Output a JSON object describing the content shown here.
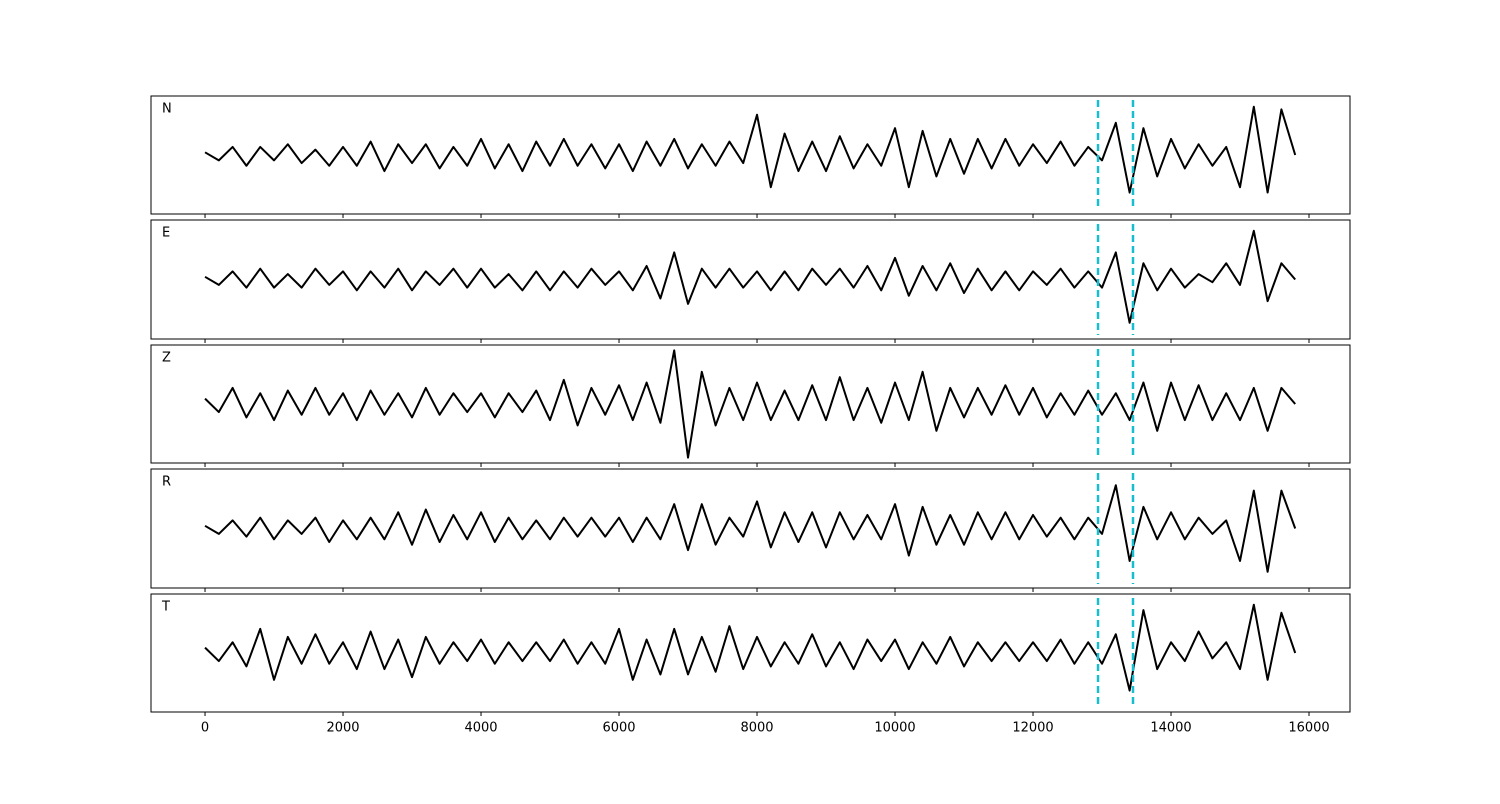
{
  "chart_data": {
    "type": "line",
    "x": [
      0,
      200,
      400,
      600,
      800,
      1000,
      1200,
      1400,
      1600,
      1800,
      2000,
      2200,
      2400,
      2600,
      2800,
      3000,
      3200,
      3400,
      3600,
      3800,
      4000,
      4200,
      4400,
      4600,
      4800,
      5000,
      5200,
      5400,
      5600,
      5800,
      6000,
      6200,
      6400,
      6600,
      6800,
      7000,
      7200,
      7400,
      7600,
      7800,
      8000,
      8200,
      8400,
      8600,
      8800,
      9000,
      9200,
      9400,
      9600,
      9800,
      10000,
      10200,
      10400,
      10600,
      10800,
      11000,
      11200,
      11400,
      11600,
      11800,
      12000,
      12200,
      12400,
      12600,
      12800,
      13000,
      13200,
      13400,
      13600,
      13800,
      14000,
      14200,
      14400,
      14600,
      14800,
      15000,
      15200,
      15400,
      15600,
      15800
    ],
    "series": [
      {
        "name": "N",
        "color": "#000000",
        "values": [
          0.05,
          -0.1,
          0.15,
          -0.2,
          0.15,
          -0.1,
          0.2,
          -0.15,
          0.1,
          -0.2,
          0.15,
          -0.2,
          0.25,
          -0.3,
          0.2,
          -0.15,
          0.2,
          -0.25,
          0.15,
          -0.2,
          0.3,
          -0.25,
          0.2,
          -0.3,
          0.25,
          -0.2,
          0.3,
          -0.2,
          0.2,
          -0.25,
          0.2,
          -0.3,
          0.25,
          -0.2,
          0.3,
          -0.25,
          0.2,
          -0.2,
          0.25,
          -0.15,
          0.75,
          -0.6,
          0.4,
          -0.3,
          0.25,
          -0.3,
          0.35,
          -0.25,
          0.2,
          -0.2,
          0.5,
          -0.6,
          0.45,
          -0.4,
          0.3,
          -0.35,
          0.3,
          -0.25,
          0.3,
          -0.2,
          0.2,
          -0.15,
          0.25,
          -0.2,
          0.15,
          -0.1,
          0.6,
          -0.7,
          0.5,
          -0.4,
          0.3,
          -0.25,
          0.2,
          -0.2,
          0.15,
          -0.6,
          0.9,
          -0.7,
          0.85,
          0.0
        ]
      },
      {
        "name": "E",
        "color": "#000000",
        "values": [
          0.05,
          -0.1,
          0.15,
          -0.15,
          0.2,
          -0.15,
          0.1,
          -0.15,
          0.2,
          -0.1,
          0.15,
          -0.2,
          0.15,
          -0.15,
          0.2,
          -0.2,
          0.15,
          -0.1,
          0.2,
          -0.15,
          0.2,
          -0.15,
          0.1,
          -0.2,
          0.15,
          -0.2,
          0.15,
          -0.15,
          0.2,
          -0.1,
          0.15,
          -0.2,
          0.25,
          -0.35,
          0.5,
          -0.45,
          0.2,
          -0.15,
          0.2,
          -0.15,
          0.15,
          -0.2,
          0.15,
          -0.2,
          0.2,
          -0.1,
          0.2,
          -0.15,
          0.25,
          -0.2,
          0.4,
          -0.3,
          0.25,
          -0.2,
          0.3,
          -0.25,
          0.2,
          -0.2,
          0.15,
          -0.2,
          0.15,
          -0.1,
          0.2,
          -0.15,
          0.15,
          -0.15,
          0.5,
          -0.8,
          0.3,
          -0.2,
          0.2,
          -0.15,
          0.1,
          -0.05,
          0.3,
          -0.1,
          0.9,
          -0.4,
          0.3,
          0.0
        ]
      },
      {
        "name": "Z",
        "color": "#000000",
        "values": [
          0.1,
          -0.15,
          0.3,
          -0.25,
          0.2,
          -0.3,
          0.25,
          -0.2,
          0.3,
          -0.2,
          0.2,
          -0.3,
          0.25,
          -0.2,
          0.2,
          -0.25,
          0.3,
          -0.2,
          0.2,
          -0.15,
          0.2,
          -0.25,
          0.2,
          -0.15,
          0.25,
          -0.3,
          0.45,
          -0.4,
          0.3,
          -0.2,
          0.35,
          -0.3,
          0.4,
          -0.35,
          1.0,
          -1.0,
          0.6,
          -0.4,
          0.3,
          -0.3,
          0.4,
          -0.3,
          0.25,
          -0.3,
          0.35,
          -0.3,
          0.5,
          -0.3,
          0.3,
          -0.35,
          0.4,
          -0.3,
          0.6,
          -0.5,
          0.3,
          -0.25,
          0.3,
          -0.2,
          0.35,
          -0.2,
          0.3,
          -0.25,
          0.2,
          -0.2,
          0.25,
          -0.2,
          0.2,
          -0.3,
          0.4,
          -0.5,
          0.4,
          -0.3,
          0.35,
          -0.3,
          0.2,
          -0.3,
          0.3,
          -0.5,
          0.3,
          0.0
        ]
      },
      {
        "name": "R",
        "color": "#000000",
        "values": [
          0.05,
          -0.1,
          0.15,
          -0.15,
          0.2,
          -0.2,
          0.15,
          -0.1,
          0.2,
          -0.25,
          0.15,
          -0.2,
          0.2,
          -0.2,
          0.3,
          -0.3,
          0.35,
          -0.25,
          0.25,
          -0.2,
          0.3,
          -0.25,
          0.2,
          -0.2,
          0.15,
          -0.2,
          0.2,
          -0.15,
          0.2,
          -0.15,
          0.2,
          -0.25,
          0.2,
          -0.2,
          0.45,
          -0.4,
          0.45,
          -0.3,
          0.2,
          -0.15,
          0.5,
          -0.35,
          0.3,
          -0.25,
          0.3,
          -0.35,
          0.3,
          -0.2,
          0.25,
          -0.2,
          0.45,
          -0.5,
          0.4,
          -0.3,
          0.25,
          -0.3,
          0.3,
          -0.2,
          0.3,
          -0.2,
          0.25,
          -0.15,
          0.2,
          -0.2,
          0.2,
          -0.1,
          0.8,
          -0.6,
          0.4,
          -0.2,
          0.3,
          -0.2,
          0.2,
          -0.1,
          0.15,
          -0.6,
          0.7,
          -0.8,
          0.7,
          0.0
        ]
      },
      {
        "name": "T",
        "color": "#000000",
        "values": [
          0.1,
          -0.15,
          0.2,
          -0.25,
          0.45,
          -0.5,
          0.3,
          -0.2,
          0.35,
          -0.2,
          0.2,
          -0.3,
          0.4,
          -0.3,
          0.25,
          -0.45,
          0.3,
          -0.2,
          0.2,
          -0.15,
          0.25,
          -0.2,
          0.2,
          -0.15,
          0.2,
          -0.15,
          0.25,
          -0.2,
          0.2,
          -0.2,
          0.45,
          -0.5,
          0.25,
          -0.4,
          0.45,
          -0.4,
          0.3,
          -0.35,
          0.5,
          -0.3,
          0.3,
          -0.25,
          0.2,
          -0.2,
          0.35,
          -0.25,
          0.2,
          -0.3,
          0.25,
          -0.15,
          0.25,
          -0.3,
          0.2,
          -0.2,
          0.3,
          -0.25,
          0.2,
          -0.15,
          0.2,
          -0.15,
          0.2,
          -0.15,
          0.25,
          -0.2,
          0.2,
          -0.2,
          0.35,
          -0.7,
          0.8,
          -0.3,
          0.2,
          -0.15,
          0.4,
          -0.1,
          0.2,
          -0.3,
          0.9,
          -0.5,
          0.75,
          0.0
        ]
      }
    ],
    "xlim": [
      -783,
      16594
    ],
    "ylim": [
      -1.1,
      1.1
    ],
    "xticks": [
      0,
      2000,
      4000,
      6000,
      8000,
      10000,
      12000,
      14000,
      16000
    ],
    "vlines": [
      12942,
      13449
    ],
    "vline_color": "#17becf"
  }
}
